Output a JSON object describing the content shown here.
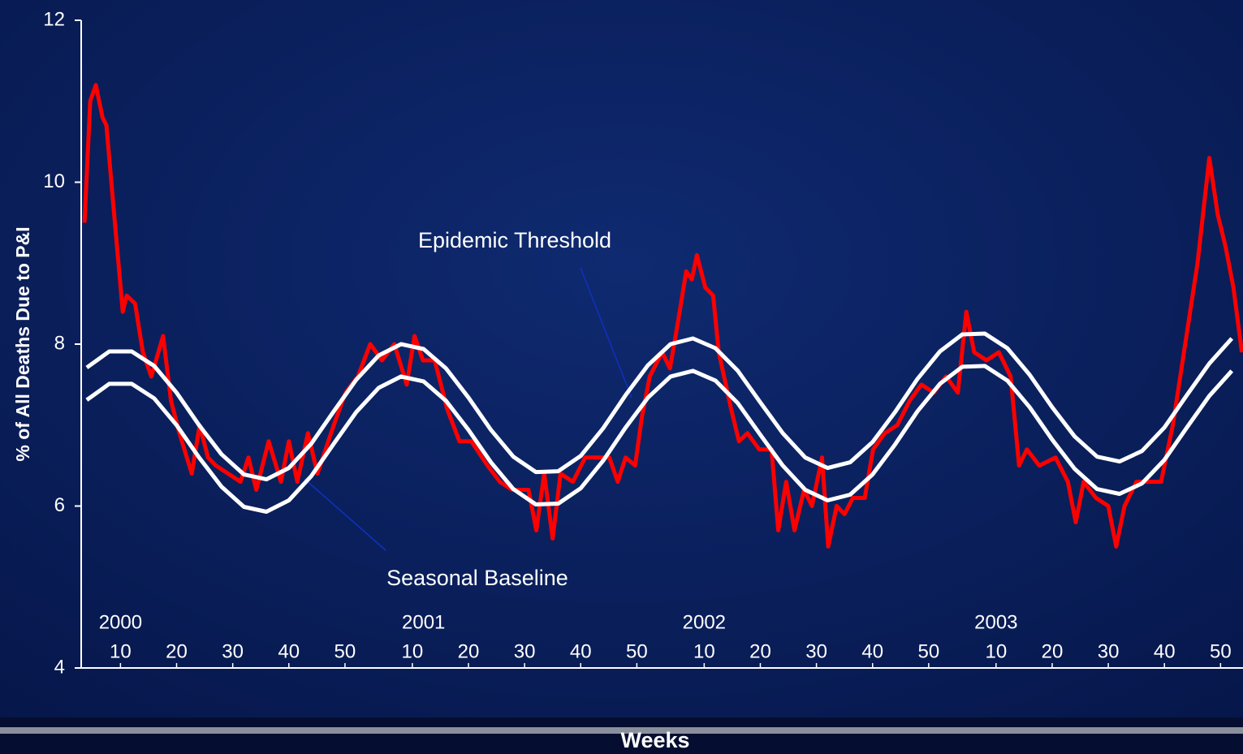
{
  "chart_data": {
    "type": "line",
    "y_label": "% of All Deaths Due to P&I",
    "x_label": "Weeks",
    "xlim": [
      3,
      210
    ],
    "ylim": [
      4,
      12
    ],
    "yticks": [
      4,
      6,
      8,
      10,
      12
    ],
    "xticks": [
      {
        "value": 10,
        "label": "10"
      },
      {
        "value": 20,
        "label": "20"
      },
      {
        "value": 30,
        "label": "30"
      },
      {
        "value": 40,
        "label": "40"
      },
      {
        "value": 50,
        "label": "50"
      },
      {
        "value": 62,
        "label": "10"
      },
      {
        "value": 72,
        "label": "20"
      },
      {
        "value": 82,
        "label": "30"
      },
      {
        "value": 92,
        "label": "40"
      },
      {
        "value": 102,
        "label": "50"
      },
      {
        "value": 114,
        "label": "10"
      },
      {
        "value": 124,
        "label": "20"
      },
      {
        "value": 134,
        "label": "30"
      },
      {
        "value": 144,
        "label": "40"
      },
      {
        "value": 154,
        "label": "50"
      },
      {
        "value": 166,
        "label": "10"
      },
      {
        "value": 176,
        "label": "20"
      },
      {
        "value": 186,
        "label": "30"
      },
      {
        "value": 196,
        "label": "40"
      },
      {
        "value": 206,
        "label": "50"
      }
    ],
    "year_labels": [
      {
        "value": 10,
        "label": "2000"
      },
      {
        "value": 64,
        "label": "2001"
      },
      {
        "value": 114,
        "label": "2002"
      },
      {
        "value": 166,
        "label": "2003"
      }
    ],
    "series": [
      {
        "color": "#ff0000",
        "x": [
          3.6,
          4.6,
          5.6,
          6.8,
          7.5,
          9,
          10.4,
          11.1,
          12.6,
          14,
          15.5,
          17.6,
          19,
          20.5,
          22.7,
          24.1,
          25.6,
          27,
          29.2,
          31.4,
          32.8,
          34.2,
          36.4,
          38.6,
          40,
          41.5,
          43.4,
          45.1,
          48,
          50.1,
          52.3,
          54.5,
          56.6,
          58.8,
          61,
          62.4,
          63.9,
          66,
          68.2,
          70.4,
          72.5,
          75.4,
          77.6,
          79.8,
          82.7,
          84.1,
          85.5,
          87,
          88.4,
          90.6,
          92.8,
          94.9,
          97.1,
          98.6,
          100,
          101.7,
          102.9,
          104.3,
          106.5,
          107.9,
          109.4,
          110.8,
          111.8,
          112.7,
          114.2,
          115.6,
          116.6,
          118.8,
          120.2,
          121.7,
          123.8,
          126,
          127.2,
          128.6,
          130.1,
          131.8,
          133.2,
          135,
          136.1,
          137.6,
          139,
          140.5,
          142.6,
          144.1,
          146.2,
          148.4,
          150.6,
          152.7,
          154.9,
          157.1,
          159.2,
          160.7,
          162.1,
          164.3,
          166.5,
          168.6,
          170.1,
          171.5,
          173.7,
          176.6,
          178.8,
          180.2,
          181.6,
          183.8,
          186,
          187.4,
          188.9,
          191,
          193.2,
          195.4,
          197.5,
          199.7,
          201.9,
          204,
          205.5,
          206.9,
          208.3,
          209.8
        ],
        "values": [
          9.5,
          11.0,
          11.2,
          10.8,
          10.7,
          9.5,
          8.4,
          8.6,
          8.5,
          7.9,
          7.6,
          8.1,
          7.3,
          6.9,
          6.4,
          7.0,
          6.6,
          6.5,
          6.4,
          6.3,
          6.6,
          6.2,
          6.8,
          6.3,
          6.8,
          6.3,
          6.9,
          6.4,
          7.0,
          7.4,
          7.6,
          8.0,
          7.8,
          8.0,
          7.5,
          8.1,
          7.8,
          7.8,
          7.2,
          6.8,
          6.8,
          6.5,
          6.3,
          6.2,
          6.2,
          5.7,
          6.4,
          5.6,
          6.4,
          6.3,
          6.6,
          6.6,
          6.6,
          6.3,
          6.6,
          6.5,
          7.1,
          7.6,
          7.9,
          7.7,
          8.3,
          8.9,
          8.8,
          9.1,
          8.7,
          8.6,
          7.9,
          7.2,
          6.8,
          6.9,
          6.7,
          6.7,
          5.7,
          6.3,
          5.7,
          6.2,
          6.0,
          6.6,
          5.5,
          6.0,
          5.9,
          6.1,
          6.1,
          6.7,
          6.9,
          7.0,
          7.3,
          7.5,
          7.4,
          7.6,
          7.4,
          8.4,
          7.9,
          7.8,
          7.9,
          7.6,
          6.5,
          6.7,
          6.5,
          6.6,
          6.3,
          5.8,
          6.3,
          6.1,
          6.0,
          5.5,
          6.0,
          6.3,
          6.3,
          6.3,
          7.0,
          8.0,
          9.0,
          10.3,
          9.6,
          9.2,
          8.7,
          7.9
        ]
      },
      {
        "name": "Epidemic Threshold",
        "color": "#ffffff",
        "x": [
          4,
          8,
          12,
          16,
          20,
          24,
          28,
          32,
          36,
          40,
          44,
          48,
          52,
          56,
          60,
          64,
          68,
          72,
          76,
          80,
          84,
          88,
          92,
          96,
          100,
          104,
          108,
          112,
          116,
          120,
          124,
          128,
          132,
          136,
          140,
          144,
          148,
          152,
          156,
          160,
          164,
          168,
          172,
          176,
          180,
          184,
          188,
          192,
          196,
          200,
          204,
          208
        ],
        "values": [
          7.71,
          7.91,
          7.91,
          7.73,
          7.4,
          7.0,
          6.64,
          6.39,
          6.33,
          6.47,
          6.77,
          7.17,
          7.56,
          7.86,
          8.0,
          7.94,
          7.7,
          7.34,
          6.94,
          6.61,
          6.42,
          6.43,
          6.62,
          6.96,
          7.37,
          7.74,
          8.0,
          8.07,
          7.95,
          7.67,
          7.28,
          6.9,
          6.6,
          6.47,
          6.54,
          6.79,
          7.16,
          7.57,
          7.91,
          8.12,
          8.13,
          7.95,
          7.62,
          7.22,
          6.86,
          6.61,
          6.55,
          6.68,
          6.97,
          7.37,
          7.76,
          8.07
        ]
      },
      {
        "name": "Seasonal Baseline",
        "color": "#ffffff",
        "x": [
          4,
          8,
          12,
          16,
          20,
          24,
          28,
          32,
          36,
          40,
          44,
          48,
          52,
          56,
          60,
          64,
          68,
          72,
          76,
          80,
          84,
          88,
          92,
          96,
          100,
          104,
          108,
          112,
          116,
          120,
          124,
          128,
          132,
          136,
          140,
          144,
          148,
          152,
          156,
          160,
          164,
          168,
          172,
          176,
          180,
          184,
          188,
          192,
          196,
          200,
          204,
          208
        ],
        "values": [
          7.31,
          7.51,
          7.51,
          7.33,
          7.0,
          6.6,
          6.24,
          5.99,
          5.93,
          6.07,
          6.37,
          6.77,
          7.16,
          7.46,
          7.6,
          7.54,
          7.3,
          6.94,
          6.54,
          6.21,
          6.02,
          6.03,
          6.22,
          6.56,
          6.97,
          7.34,
          7.6,
          7.67,
          7.55,
          7.27,
          6.88,
          6.5,
          6.2,
          6.07,
          6.14,
          6.39,
          6.76,
          7.17,
          7.51,
          7.72,
          7.73,
          7.55,
          7.22,
          6.82,
          6.46,
          6.21,
          6.15,
          6.28,
          6.57,
          6.97,
          7.36,
          7.67
        ]
      }
    ]
  }
}
